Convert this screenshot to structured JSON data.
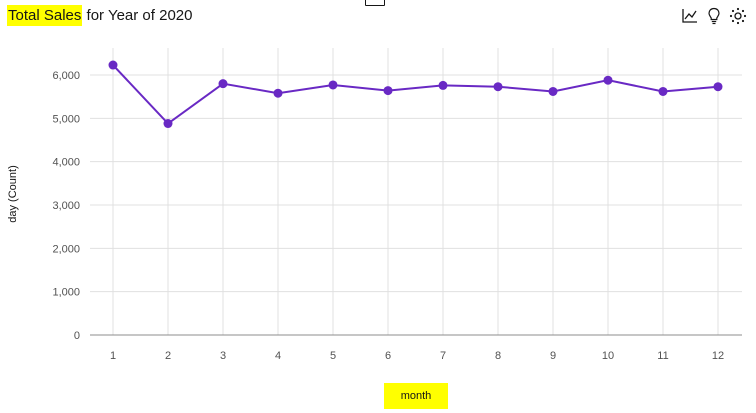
{
  "header": {
    "title_highlight": "Total Sales",
    "title_rest": " for Year of 2020"
  },
  "toolbar": {
    "icons": [
      "line-chart-icon",
      "lightbulb-icon",
      "settings-icon"
    ]
  },
  "colors": {
    "series": "#6929c4",
    "highlight": "#ffff00",
    "grid": "#e0e0e0",
    "axis_text": "#525252"
  },
  "chart_data": {
    "type": "line",
    "title": "Total Sales for Year of 2020",
    "x": [
      "1",
      "2",
      "3",
      "4",
      "5",
      "6",
      "7",
      "8",
      "9",
      "10",
      "11",
      "12"
    ],
    "series": [
      {
        "values": [
          6230,
          4880,
          5800,
          5580,
          5770,
          5640,
          5760,
          5730,
          5620,
          5880,
          5620,
          5730
        ]
      }
    ],
    "xlabel": "month",
    "ylabel_prefix": "day (",
    "ylabel_highlight": "Count",
    "ylabel_suffix": ")",
    "ylim": [
      0,
      6000
    ],
    "yticks": [
      0,
      1000,
      2000,
      3000,
      4000,
      5000,
      6000
    ],
    "ytick_labels": [
      "0",
      "1,000",
      "2,000",
      "3,000",
      "4,000",
      "5,000",
      "6,000"
    ],
    "grid": true,
    "legend": "none"
  }
}
